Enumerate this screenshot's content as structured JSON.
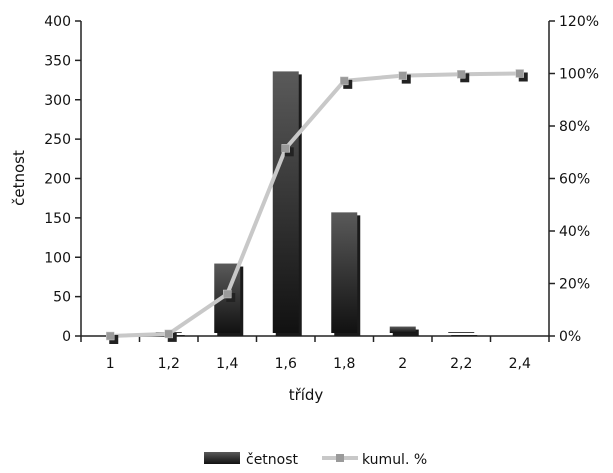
{
  "chart_data": {
    "type": "bar",
    "categories": [
      "1",
      "1,2",
      "1,4",
      "1,6",
      "1,8",
      "2",
      "2,2",
      "2,4"
    ],
    "series": [
      {
        "name": "četnost",
        "axis": "left",
        "kind": "bar",
        "values": [
          0,
          5,
          92,
          336,
          157,
          12,
          5,
          2
        ]
      },
      {
        "name": "kumul. %",
        "axis": "right",
        "kind": "line",
        "values": [
          0,
          0.8,
          16.0,
          71.5,
          97.2,
          99.2,
          99.7,
          100
        ]
      }
    ],
    "xlabel": "třídy",
    "ylabel": "četnost",
    "ylim": [
      0,
      400
    ],
    "y_ticks": [
      "0",
      "50",
      "100",
      "150",
      "200",
      "250",
      "300",
      "350",
      "400"
    ],
    "y2lim": [
      0,
      120
    ],
    "y2_ticks": [
      "0%",
      "20%",
      "40%",
      "60%",
      "80%",
      "100%",
      "120%"
    ],
    "grid": false,
    "legend": "bottom",
    "colors": {
      "bar_top": "#5a5a5a",
      "bar_bottom": "#111111",
      "bar_shadow": "#1a1a1a",
      "line": "#c8c8c8",
      "marker": "#9a9a9a",
      "axis": "#222222"
    }
  }
}
